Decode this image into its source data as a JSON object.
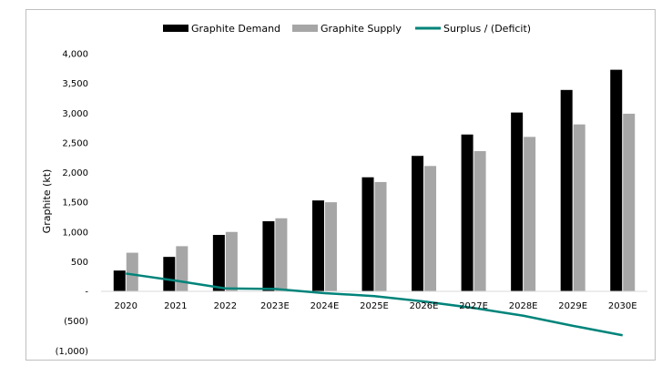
{
  "chart_data": {
    "type": "bar",
    "title": "",
    "xlabel": "",
    "ylabel": "Graphite (kt)",
    "ylim": [
      -1000,
      4000
    ],
    "yticks": [
      4000,
      3500,
      3000,
      2500,
      2000,
      1500,
      1000,
      500,
      0,
      -500,
      -1000
    ],
    "ytick_labels": [
      "4,000",
      "3,500",
      "3,000",
      "2,500",
      "2,000",
      "1,500",
      "1,000",
      "500",
      "-",
      "(500)",
      "(1,000)"
    ],
    "categories": [
      "2020",
      "2021",
      "2022",
      "2023E",
      "2024E",
      "2025E",
      "2026E",
      "2027E",
      "2028E",
      "2029E",
      "2030E"
    ],
    "legend_position": "top",
    "series": [
      {
        "name": "Graphite Demand",
        "kind": "bar",
        "color": "#000000",
        "values": [
          350,
          580,
          950,
          1180,
          1530,
          1920,
          2280,
          2640,
          3010,
          3390,
          3730
        ]
      },
      {
        "name": "Graphite Supply",
        "kind": "bar",
        "color": "#a6a6a6",
        "values": [
          650,
          760,
          1000,
          1230,
          1500,
          1840,
          2110,
          2360,
          2600,
          2810,
          2990
        ]
      },
      {
        "name": "Surplus / (Deficit)",
        "kind": "line",
        "color": "#00847a",
        "values": [
          300,
          180,
          50,
          40,
          -30,
          -80,
          -170,
          -280,
          -410,
          -580,
          -740
        ]
      }
    ]
  }
}
